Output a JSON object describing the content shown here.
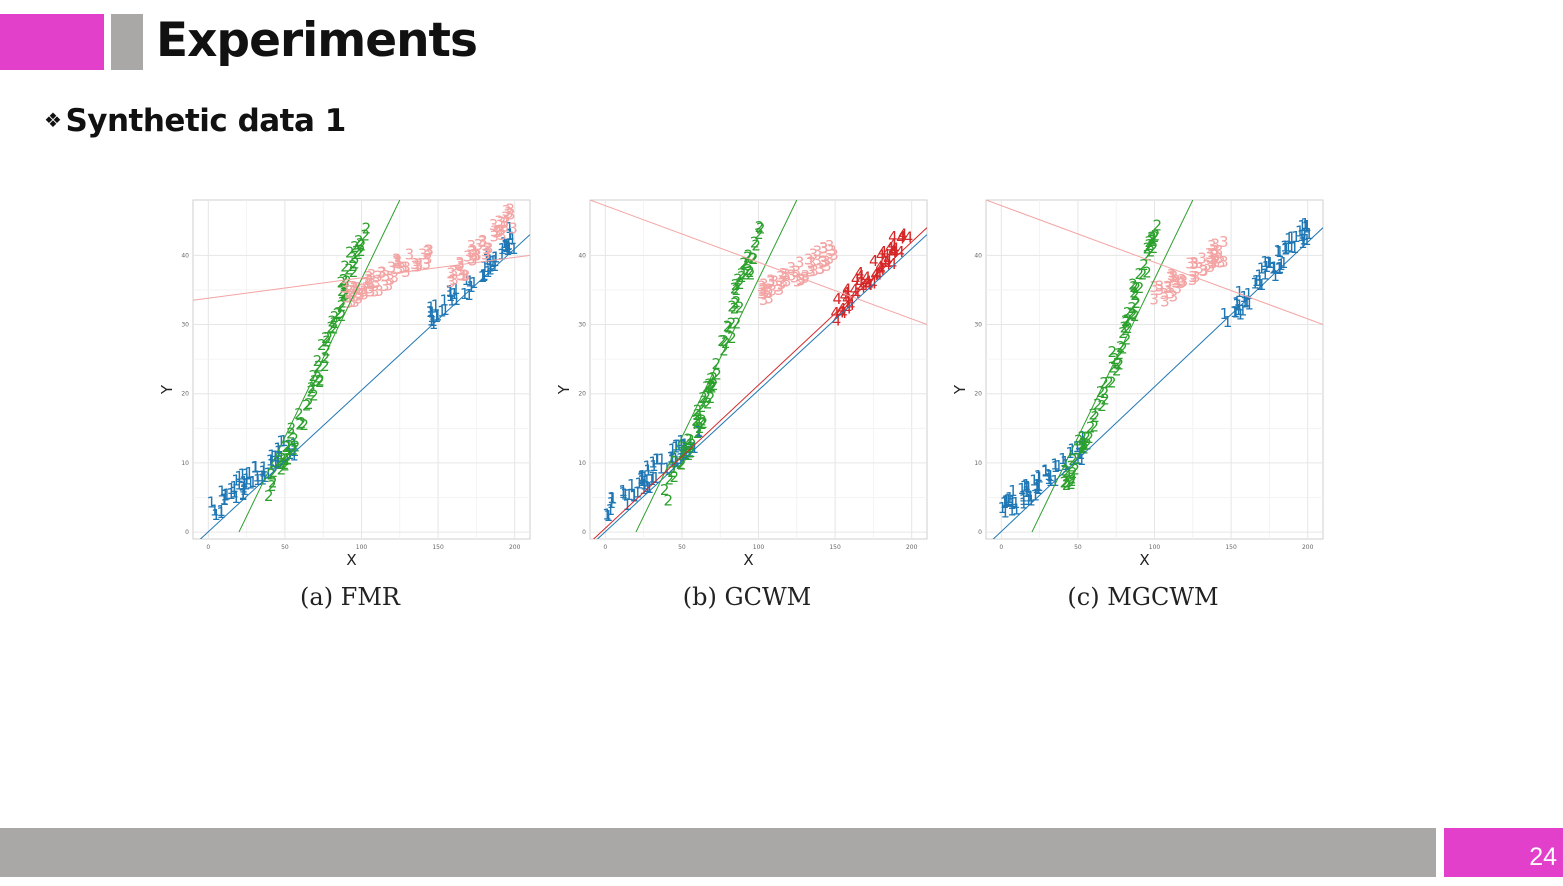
{
  "slide": {
    "title": "Experiments",
    "subtitle_bullet": "❖",
    "subtitle": "Synthetic data 1",
    "page_number": "24"
  },
  "colors": {
    "accent": "#e23fcb",
    "bar": "#aaa7a7",
    "cluster_1": "#1f77b4",
    "cluster_2": "#2ca02c",
    "cluster_3": "#f4a3a3",
    "cluster_4": "#d62728"
  },
  "chart_data": [
    {
      "type": "scatter",
      "caption": "(a) FMR",
      "xlabel": "X",
      "ylabel": "Y",
      "xlim": [
        -10,
        210
      ],
      "ylim": [
        -1,
        48
      ],
      "xticks": [
        0,
        50,
        100,
        150,
        200
      ],
      "yticks": [
        0,
        10,
        20,
        30,
        40
      ],
      "grid": true,
      "markers": "cluster numbers",
      "clusters": [
        {
          "label": "1",
          "color": "#1f77b4",
          "segments": [
            {
              "x0": 0,
              "x1": 55,
              "y0": 2,
              "y1": 12
            },
            {
              "x0": 145,
              "x1": 200,
              "y0": 30,
              "y1": 42
            }
          ]
        },
        {
          "label": "2",
          "color": "#2ca02c",
          "segments": [
            {
              "x0": 40,
              "x1": 62,
              "y0": 5,
              "y1": 16
            },
            {
              "x0": 62,
              "x1": 88,
              "y0": 16,
              "y1": 33
            },
            {
              "x0": 85,
              "x1": 102,
              "y0": 33,
              "y1": 43
            }
          ]
        },
        {
          "label": "3",
          "color": "#f4a3a3",
          "segments": [
            {
              "x0": 88,
              "x1": 145,
              "y0": 33,
              "y1": 40
            },
            {
              "x0": 160,
              "x1": 200,
              "y0": 36,
              "y1": 45
            }
          ]
        }
      ],
      "lines": [
        {
          "color": "#1f77b4",
          "x": [
            -10,
            210
          ],
          "y": [
            -2,
            43
          ]
        },
        {
          "color": "#2ca02c",
          "x": [
            20,
            125
          ],
          "y": [
            0,
            48
          ]
        },
        {
          "color": "#f4a3a3",
          "x": [
            -10,
            210
          ],
          "y": [
            33.5,
            40
          ]
        }
      ]
    },
    {
      "type": "scatter",
      "caption": "(b) GCWM",
      "xlabel": "X",
      "ylabel": "Y",
      "xlim": [
        -10,
        210
      ],
      "ylim": [
        -1,
        48
      ],
      "xticks": [
        0,
        50,
        100,
        150,
        200
      ],
      "yticks": [
        0,
        10,
        20,
        30,
        40
      ],
      "grid": true,
      "markers": "cluster numbers",
      "clusters": [
        {
          "label": "1",
          "color": "#1f77b4",
          "segments": [
            {
              "x0": 0,
              "x1": 60,
              "y0": 2,
              "y1": 13
            }
          ]
        },
        {
          "label": "2",
          "color": "#2ca02c",
          "segments": [
            {
              "x0": 40,
              "x1": 62,
              "y0": 5,
              "y1": 16
            },
            {
              "x0": 62,
              "x1": 88,
              "y0": 16,
              "y1": 33
            },
            {
              "x0": 85,
              "x1": 102,
              "y0": 33,
              "y1": 43
            }
          ]
        },
        {
          "label": "3",
          "color": "#f4a3a3",
          "segments": [
            {
              "x0": 100,
              "x1": 150,
              "y0": 33,
              "y1": 40
            }
          ]
        },
        {
          "label": "4",
          "color": "#d62728",
          "segments": [
            {
              "x0": 150,
              "x1": 200,
              "y0": 31,
              "y1": 43
            }
          ]
        }
      ],
      "lines": [
        {
          "color": "#1f77b4",
          "x": [
            -10,
            210
          ],
          "y": [
            -2,
            43
          ]
        },
        {
          "color": "#2ca02c",
          "x": [
            20,
            125
          ],
          "y": [
            0,
            48
          ]
        },
        {
          "color": "#f4a3a3",
          "x": [
            -10,
            210
          ],
          "y": [
            48,
            30
          ]
        },
        {
          "color": "#d62728",
          "x": [
            -10,
            210
          ],
          "y": [
            -1.5,
            44
          ]
        }
      ]
    },
    {
      "type": "scatter",
      "caption": "(c) MGCWM",
      "xlabel": "X",
      "ylabel": "Y",
      "xlim": [
        -10,
        210
      ],
      "ylim": [
        -1,
        48
      ],
      "xticks": [
        0,
        50,
        100,
        150,
        200
      ],
      "yticks": [
        0,
        10,
        20,
        30,
        40
      ],
      "grid": true,
      "markers": "cluster numbers",
      "clusters": [
        {
          "label": "1",
          "color": "#1f77b4",
          "segments": [
            {
              "x0": 0,
              "x1": 55,
              "y0": 2,
              "y1": 12
            },
            {
              "x0": 145,
              "x1": 200,
              "y0": 30,
              "y1": 43
            }
          ]
        },
        {
          "label": "2",
          "color": "#2ca02c",
          "segments": [
            {
              "x0": 40,
              "x1": 62,
              "y0": 5,
              "y1": 16
            },
            {
              "x0": 62,
              "x1": 88,
              "y0": 16,
              "y1": 33
            },
            {
              "x0": 85,
              "x1": 102,
              "y0": 33,
              "y1": 43
            }
          ]
        },
        {
          "label": "3",
          "color": "#f4a3a3",
          "segments": [
            {
              "x0": 100,
              "x1": 145,
              "y0": 33,
              "y1": 40
            }
          ]
        }
      ],
      "lines": [
        {
          "color": "#1f77b4",
          "x": [
            -10,
            210
          ],
          "y": [
            -2,
            44
          ]
        },
        {
          "color": "#2ca02c",
          "x": [
            20,
            125
          ],
          "y": [
            0,
            48
          ]
        },
        {
          "color": "#f4a3a3",
          "x": [
            -10,
            210
          ],
          "y": [
            48,
            30
          ]
        }
      ]
    }
  ]
}
